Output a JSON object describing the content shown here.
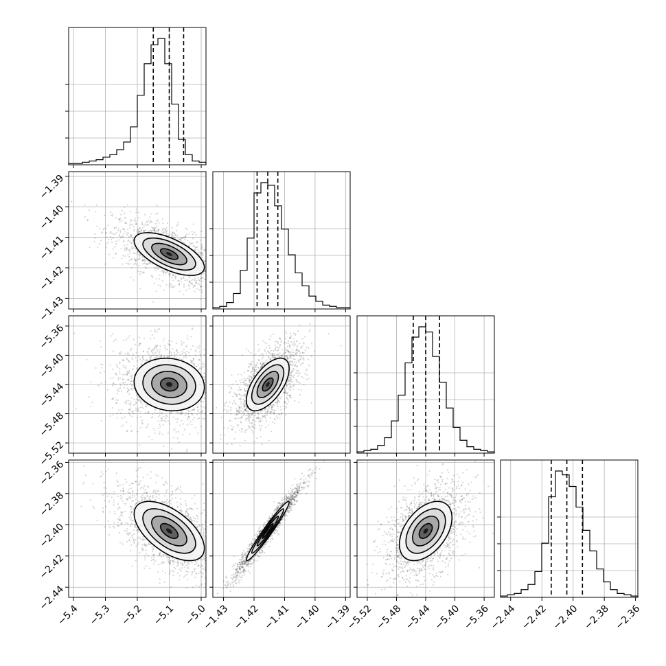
{
  "chart_data": {
    "type": "corner",
    "parameters": [
      {
        "ticks": [
          "-5.4",
          "-5.3",
          "-5.2",
          "-5.1",
          "-5.0"
        ],
        "tick_values": [
          -5.4,
          -5.3,
          -5.2,
          -5.1,
          -5.0
        ],
        "range": [
          -5.415,
          -4.985
        ],
        "median": -5.1,
        "q16": -5.15,
        "q84": -5.055,
        "sigma": 0.055
      },
      {
        "ticks": [
          "-1.43",
          "-1.42",
          "-1.41",
          "-1.40",
          "-1.39"
        ],
        "tick_values": [
          -1.43,
          -1.42,
          -1.41,
          -1.4,
          -1.39
        ],
        "range": [
          -1.4335,
          -1.3885
        ],
        "median": -1.4155,
        "q16": -1.419,
        "q84": -1.4122,
        "sigma": 0.0035
      },
      {
        "ticks": [
          "-5.52",
          "-5.48",
          "-5.44",
          "-5.40",
          "-5.36"
        ],
        "tick_values": [
          -5.52,
          -5.48,
          -5.44,
          -5.4,
          -5.36
        ],
        "range": [
          -5.534,
          -5.346
        ],
        "median": -5.44,
        "q16": -5.457,
        "q84": -5.421,
        "sigma": 0.018
      },
      {
        "ticks": [
          "-2.44",
          "-2.42",
          "-2.40",
          "-2.38",
          "-2.36"
        ],
        "tick_values": [
          -2.44,
          -2.42,
          -2.4,
          -2.38,
          -2.36
        ],
        "range": [
          -2.4465,
          -2.3585
        ],
        "median": -2.404,
        "q16": -2.414,
        "q84": -2.394,
        "sigma": 0.0095
      }
    ],
    "histograms": [
      {
        "bins": 20,
        "counts": [
          1,
          1,
          2,
          3,
          4,
          6,
          8,
          12,
          18,
          30,
          55,
          80,
          95,
          100,
          80,
          48,
          20,
          8,
          3,
          2
        ]
      },
      {
        "bins": 20,
        "counts": [
          1,
          2,
          5,
          12,
          30,
          55,
          90,
          98,
          96,
          80,
          62,
          42,
          28,
          18,
          10,
          6,
          3,
          2,
          1,
          1
        ]
      },
      {
        "bins": 20,
        "counts": [
          1,
          2,
          3,
          6,
          12,
          25,
          45,
          70,
          90,
          98,
          94,
          75,
          55,
          35,
          20,
          10,
          5,
          3,
          2,
          1
        ]
      },
      {
        "bins": 20,
        "counts": [
          1,
          2,
          3,
          6,
          10,
          20,
          42,
          78,
          98,
          95,
          86,
          70,
          52,
          36,
          22,
          12,
          6,
          3,
          2,
          1
        ]
      }
    ],
    "pairs": [
      {
        "x": 0,
        "y": 1,
        "rho": -0.62
      },
      {
        "x": 0,
        "y": 2,
        "rho": -0.1
      },
      {
        "x": 1,
        "y": 2,
        "rho": 0.6
      },
      {
        "x": 0,
        "y": 3,
        "rho": -0.58
      },
      {
        "x": 1,
        "y": 3,
        "rho": 0.97
      },
      {
        "x": 2,
        "y": 3,
        "rho": 0.45
      }
    ],
    "contour_levels_sigma": [
      0.5,
      1.0,
      1.5,
      2.0
    ],
    "grid": true,
    "quantile_lines": "dashed"
  }
}
